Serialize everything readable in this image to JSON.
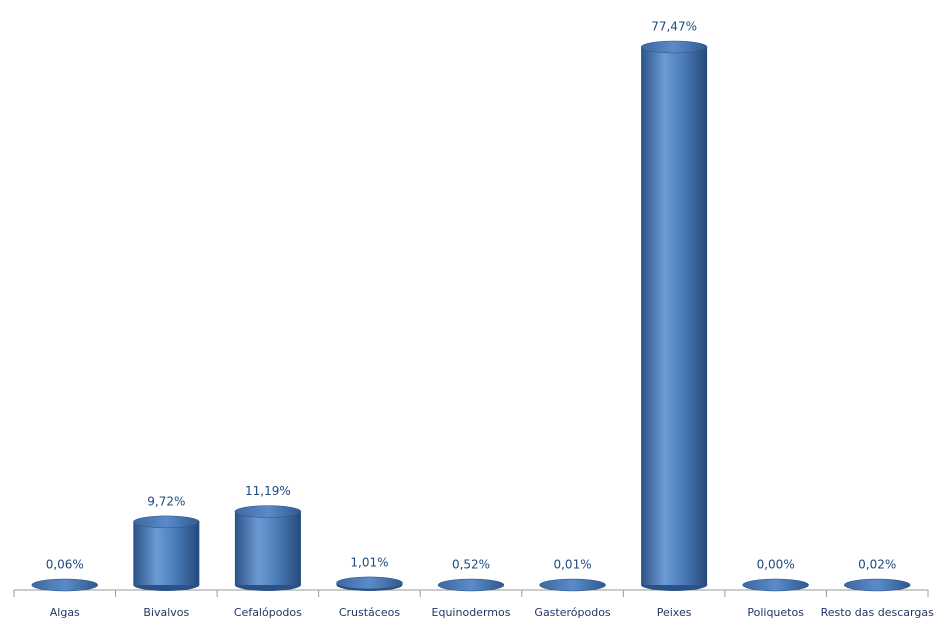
{
  "chart_data": {
    "type": "bar",
    "categories": [
      "Algas",
      "Bivalvos",
      "Cefalópodos",
      "Crustáceos",
      "Equinodermos",
      "Gasterópodos",
      "Peixes",
      "Poliquetos",
      "Resto das descargas"
    ],
    "values": [
      0.06,
      9.72,
      11.19,
      1.01,
      0.52,
      0.01,
      77.47,
      0.0,
      0.02
    ],
    "value_labels": [
      "0,06%",
      "9,72%",
      "11,19%",
      "1,01%",
      "0,52%",
      "0,01%",
      "77,47%",
      "0,00%",
      "0,02%"
    ],
    "color": "#4f81bd"
  }
}
